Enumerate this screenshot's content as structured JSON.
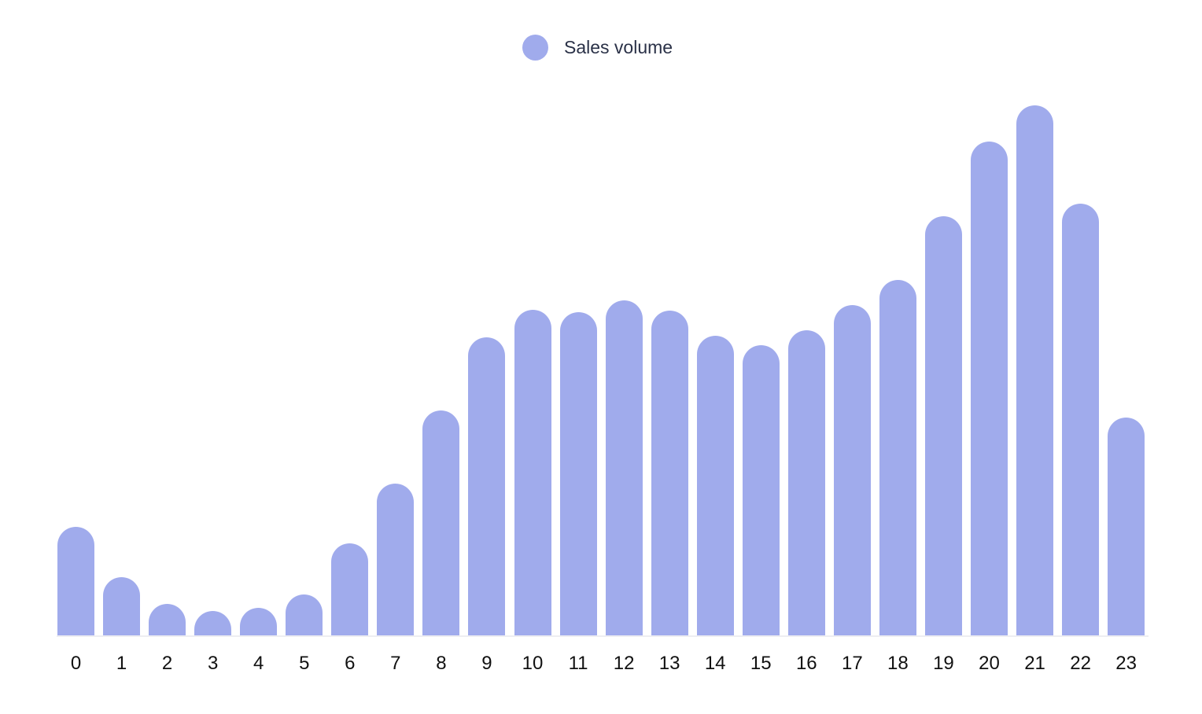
{
  "legend": {
    "label": "Sales volume",
    "color": "#a0abec"
  },
  "chart_data": {
    "type": "bar",
    "title": "",
    "xlabel": "",
    "ylabel": "",
    "categories": [
      "0",
      "1",
      "2",
      "3",
      "4",
      "5",
      "6",
      "7",
      "8",
      "9",
      "10",
      "11",
      "12",
      "13",
      "14",
      "15",
      "16",
      "17",
      "18",
      "19",
      "20",
      "21",
      "22",
      "23"
    ],
    "series": [
      {
        "name": "Sales volume",
        "color": "#a0abec",
        "values": [
          139,
          75,
          41,
          32,
          36,
          53,
          118,
          194,
          287,
          380,
          415,
          412,
          427,
          414,
          382,
          370,
          389,
          421,
          453,
          534,
          629,
          675,
          550,
          278
        ]
      }
    ],
    "ylim": [
      0,
      709
    ],
    "grid": false,
    "legend_position": "top",
    "bar_style": "rounded-top"
  }
}
